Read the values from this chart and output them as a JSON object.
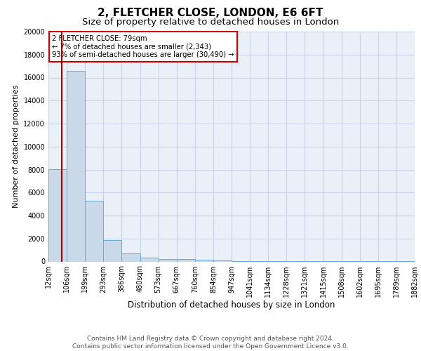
{
  "title1": "2, FLETCHER CLOSE, LONDON, E6 6FT",
  "title2": "Size of property relative to detached houses in London",
  "xlabel": "Distribution of detached houses by size in London",
  "ylabel": "Number of detached properties",
  "bin_labels": [
    "12sqm",
    "106sqm",
    "199sqm",
    "293sqm",
    "386sqm",
    "480sqm",
    "573sqm",
    "667sqm",
    "760sqm",
    "854sqm",
    "947sqm",
    "1041sqm",
    "1134sqm",
    "1228sqm",
    "1321sqm",
    "1415sqm",
    "1508sqm",
    "1602sqm",
    "1695sqm",
    "1789sqm",
    "1882sqm"
  ],
  "bar_heights": [
    8050,
    16600,
    5300,
    1850,
    700,
    310,
    220,
    210,
    160,
    110,
    60,
    40,
    30,
    20,
    15,
    10,
    8,
    6,
    5,
    4
  ],
  "bar_color": "#c9d9ea",
  "bar_edge_color": "#6aaad4",
  "grid_color": "#c8d4e4",
  "background_color": "#eaf0f8",
  "vline_color": "#aa0000",
  "annotation_line1": "2 FLETCHER CLOSE: 79sqm",
  "annotation_line2": "← 7% of detached houses are smaller (2,343)",
  "annotation_line3": "93% of semi-detached houses are larger (30,490) →",
  "annotation_box_color": "#ffffff",
  "annotation_box_edge": "#cc0000",
  "ylim": [
    0,
    20000
  ],
  "yticks": [
    0,
    2000,
    4000,
    6000,
    8000,
    10000,
    12000,
    14000,
    16000,
    18000,
    20000
  ],
  "footer": "Contains HM Land Registry data © Crown copyright and database right 2024.\nContains public sector information licensed under the Open Government Licence v3.0.",
  "title1_fontsize": 11,
  "title2_fontsize": 9.5,
  "xlabel_fontsize": 8.5,
  "ylabel_fontsize": 8,
  "tick_fontsize": 7,
  "footer_fontsize": 6.5,
  "sqm_values": [
    12,
    106,
    199,
    293,
    386,
    480,
    573,
    667,
    760,
    854,
    947,
    1041,
    1134,
    1228,
    1321,
    1415,
    1508,
    1602,
    1695,
    1789,
    1882
  ],
  "property_sqm": 79
}
